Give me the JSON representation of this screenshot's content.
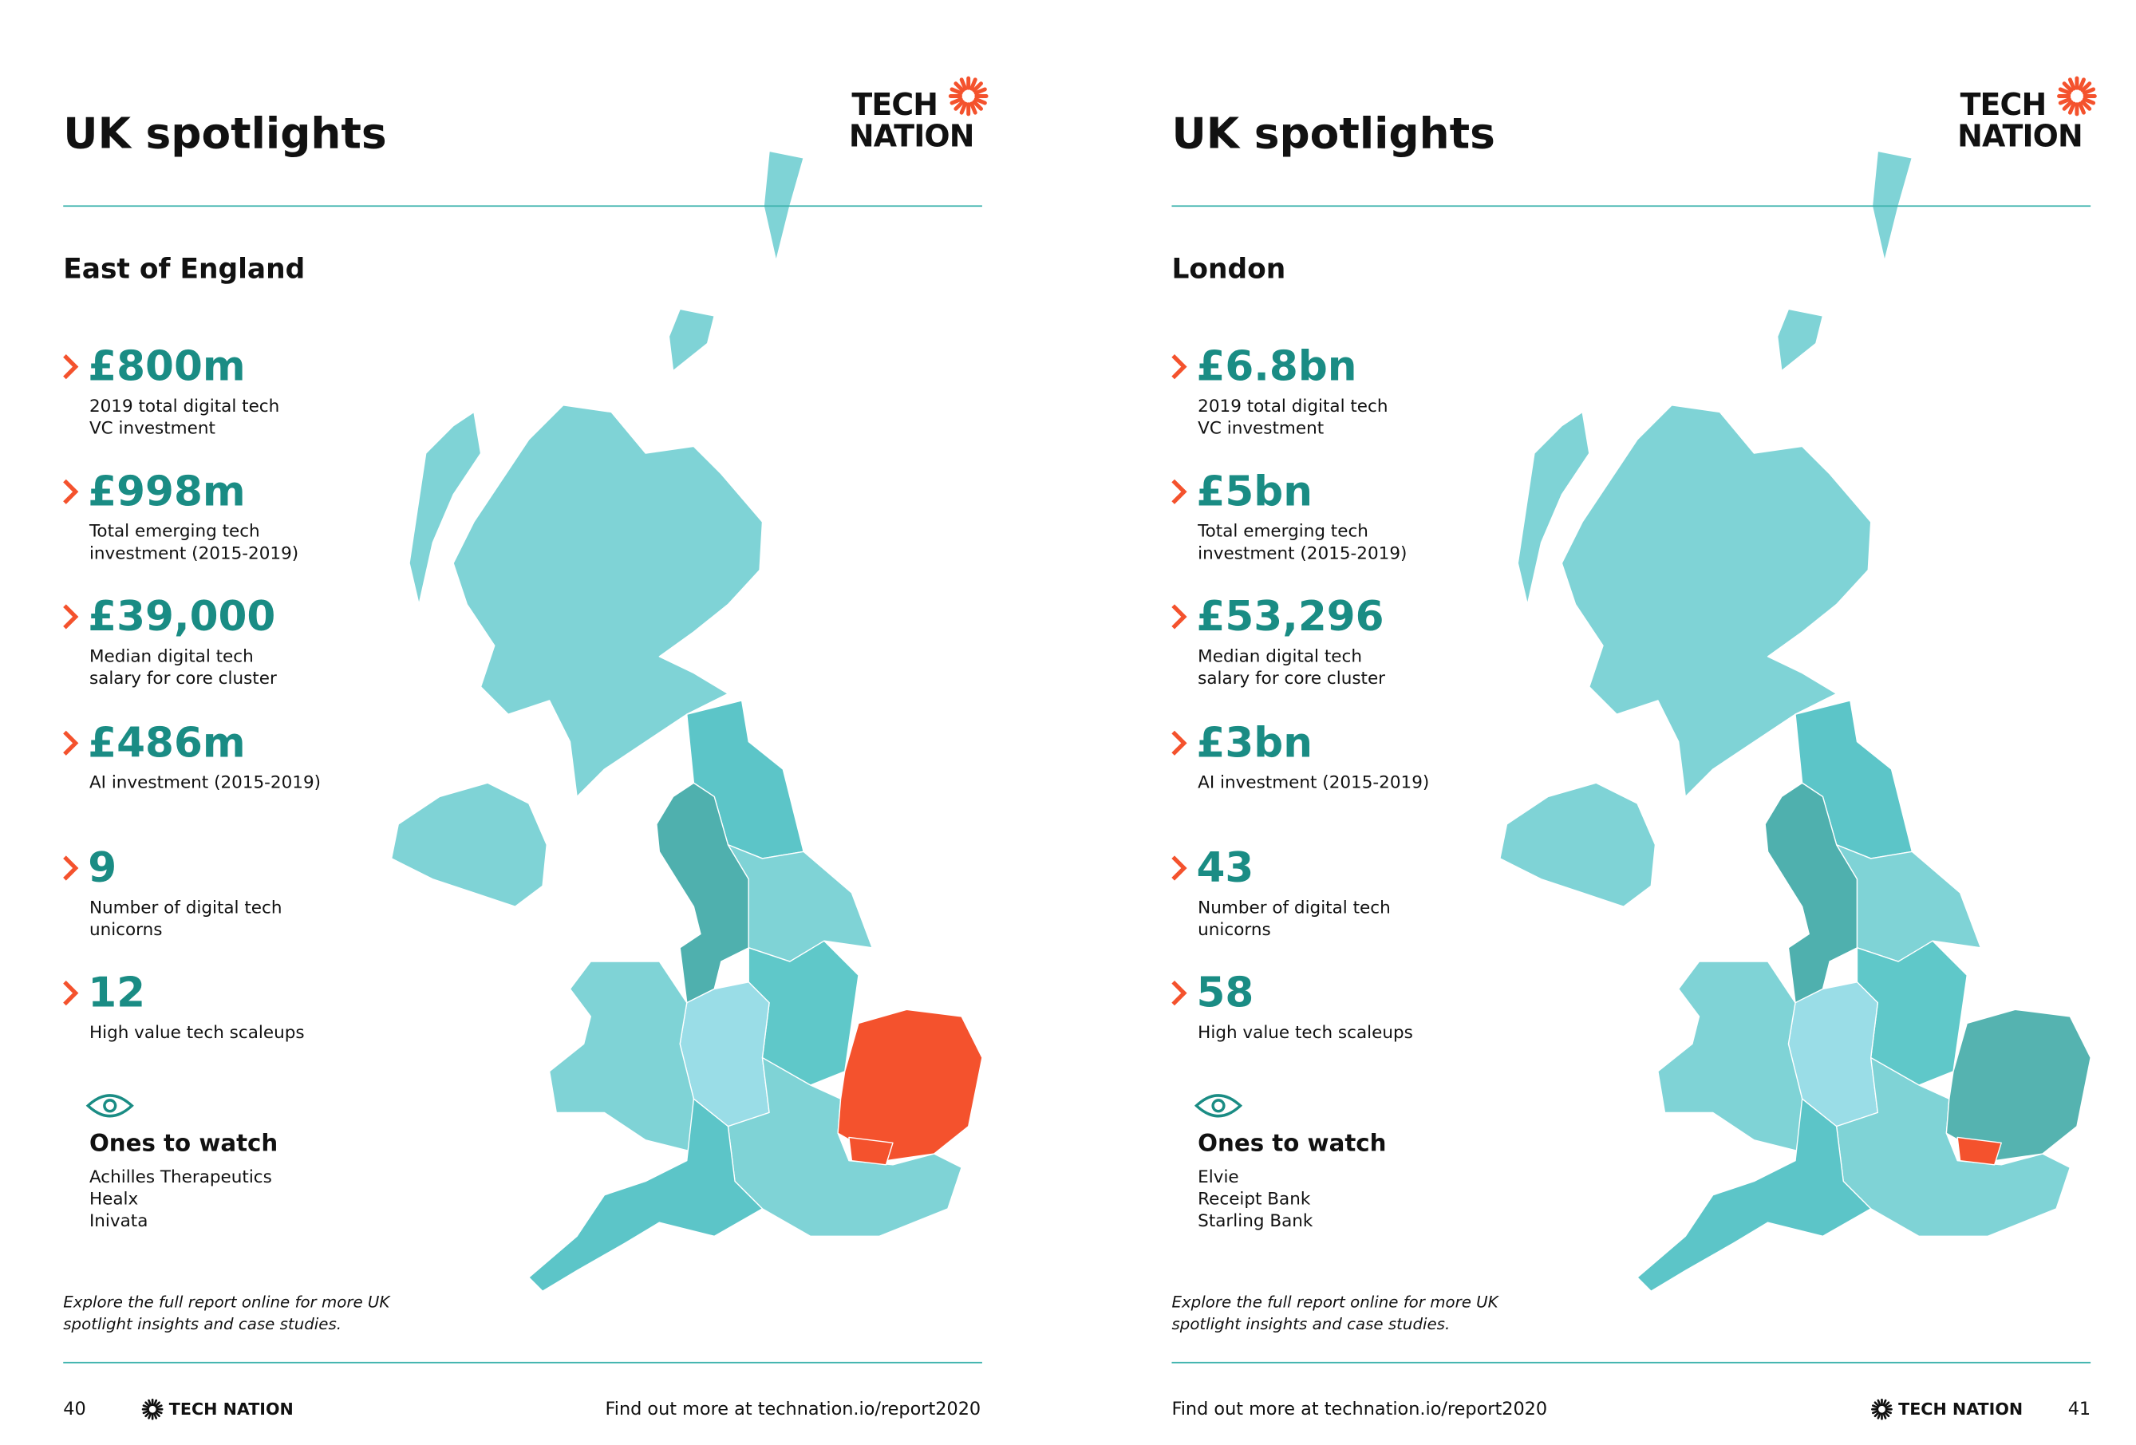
{
  "pages": [
    {
      "header": {
        "title": "UK spotlights",
        "logo": [
          "TECH",
          "NATION"
        ]
      },
      "region": "East of England",
      "stats": [
        {
          "value": "£800m",
          "label": [
            "2019 total digital tech",
            "VC investment"
          ]
        },
        {
          "value": "£998m",
          "label": [
            "Total emerging tech",
            "investment (2015-2019)"
          ]
        },
        {
          "value": "£39,000",
          "label": [
            "Median digital tech",
            "salary for core cluster"
          ]
        },
        {
          "value": "£486m",
          "label": [
            "AI investment (2015-2019)"
          ]
        },
        {
          "value": "9",
          "label": [
            "Number of digital tech",
            "unicorns"
          ]
        },
        {
          "value": "12",
          "label": [
            "High value tech scaleups"
          ]
        }
      ],
      "watch": {
        "heading": "Ones to watch",
        "items": [
          "Achilles Therapeutics",
          "Healx",
          "Inivata"
        ]
      },
      "note": [
        "Explore the full report online for more UK",
        "spotlight insights and case studies."
      ],
      "footer": {
        "page_number": "40",
        "brand": "TECH NATION",
        "link": "Find out more at technation.io/report2020"
      }
    },
    {
      "header": {
        "title": "UK spotlights",
        "logo": [
          "TECH",
          "NATION"
        ]
      },
      "region": "London",
      "stats": [
        {
          "value": "£6.8bn",
          "label": [
            "2019 total digital tech",
            "VC investment"
          ]
        },
        {
          "value": "£5bn",
          "label": [
            "Total emerging tech",
            "investment (2015-2019)"
          ]
        },
        {
          "value": "£53,296",
          "label": [
            "Median digital tech",
            "salary for core cluster"
          ]
        },
        {
          "value": "£3bn",
          "label": [
            "AI investment (2015-2019)"
          ]
        },
        {
          "value": "43",
          "label": [
            "Number of digital tech",
            "unicorns"
          ]
        },
        {
          "value": "58",
          "label": [
            "High value tech scaleups"
          ]
        }
      ],
      "watch": {
        "heading": "Ones to watch",
        "items": [
          "Elvie",
          "Receipt Bank",
          "Starling Bank"
        ]
      },
      "note": [
        "Explore the full report online for more UK",
        "spotlight insights and case studies."
      ],
      "footer": {
        "page_number": "41",
        "brand": "TECH NATION",
        "link": "Find out more at technation.io/report2020"
      }
    }
  ]
}
